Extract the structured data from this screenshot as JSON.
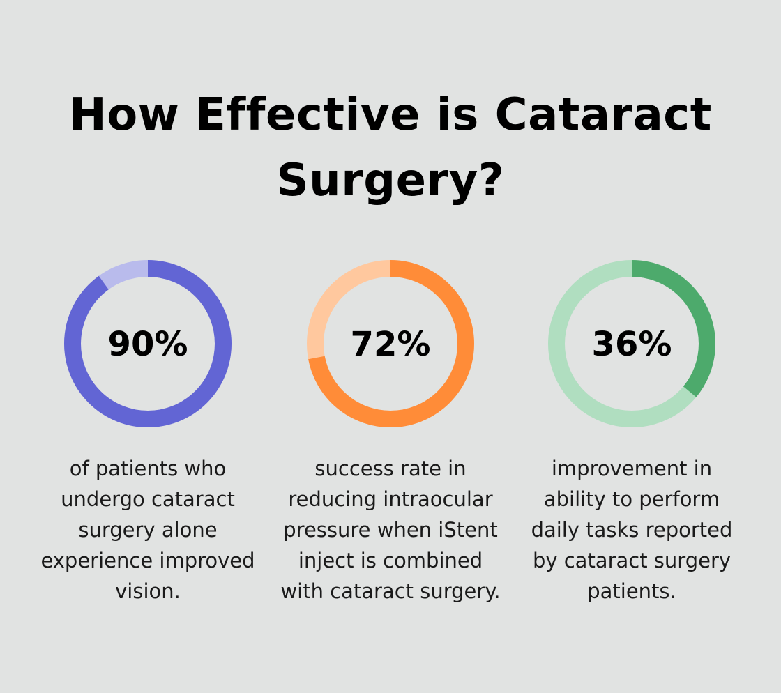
{
  "page": {
    "title": "How Effective is Cataract Surgery?"
  },
  "chart_data": [
    {
      "type": "pie",
      "variant": "donut",
      "value": 90,
      "label": "90%",
      "caption": "of patients who undergo cataract surgery alone experience improved vision.",
      "colors": {
        "fill": "#6265d4",
        "track": "#b9bbec"
      }
    },
    {
      "type": "pie",
      "variant": "donut",
      "value": 72,
      "label": "72%",
      "caption": "success rate in reducing intraocular pressure when iStent inject is combined with cataract surgery.",
      "colors": {
        "fill": "#ff8c38",
        "track": "#ffc89e"
      }
    },
    {
      "type": "pie",
      "variant": "donut",
      "value": 36,
      "label": "36%",
      "caption": "improvement in ability to perform daily tasks reported by cataract surgery patients.",
      "colors": {
        "fill": "#4daa6c",
        "track": "#b0dec0"
      }
    }
  ]
}
